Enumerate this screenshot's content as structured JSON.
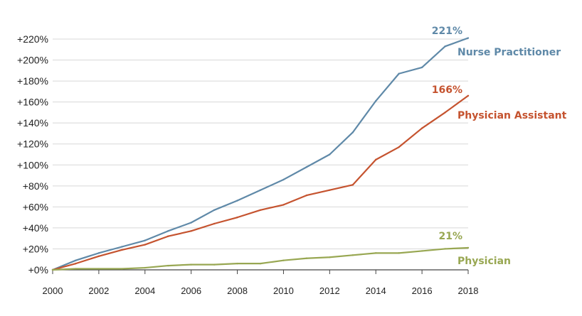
{
  "chart_data": {
    "type": "line",
    "title": "",
    "xlabel": "",
    "ylabel": "",
    "x": [
      2000,
      2001,
      2002,
      2003,
      2004,
      2005,
      2006,
      2007,
      2008,
      2009,
      2010,
      2011,
      2012,
      2013,
      2014,
      2015,
      2016,
      2017,
      2018
    ],
    "xticks": [
      "2000",
      "2002",
      "2004",
      "2006",
      "2008",
      "2010",
      "2012",
      "2014",
      "2016",
      "2018"
    ],
    "yticks": [
      "+0%",
      "+20%",
      "+40%",
      "+60%",
      "+80%",
      "+100%",
      "+120%",
      "+140%",
      "+160%",
      "+180%",
      "+200%",
      "+220%"
    ],
    "ylim": [
      0,
      220
    ],
    "grid": "horizontal",
    "series": [
      {
        "name": "Nurse Practitioner",
        "end_label": "221%",
        "color": "#5f89a8",
        "values": [
          0,
          9,
          16,
          22,
          28,
          37,
          45,
          57,
          66,
          76,
          86,
          98,
          110,
          131,
          161,
          187,
          193,
          213,
          221
        ]
      },
      {
        "name": "Physician Assistant",
        "end_label": "166%",
        "color": "#c5532f",
        "values": [
          0,
          6,
          13,
          19,
          24,
          32,
          37,
          44,
          50,
          57,
          62,
          71,
          76,
          81,
          105,
          117,
          135,
          150,
          166
        ]
      },
      {
        "name": "Physician",
        "end_label": "21%",
        "color": "#98a752",
        "values": [
          0,
          1,
          1,
          1,
          2,
          4,
          5,
          5,
          6,
          6,
          9,
          11,
          12,
          14,
          16,
          16,
          18,
          20,
          21
        ]
      }
    ]
  }
}
